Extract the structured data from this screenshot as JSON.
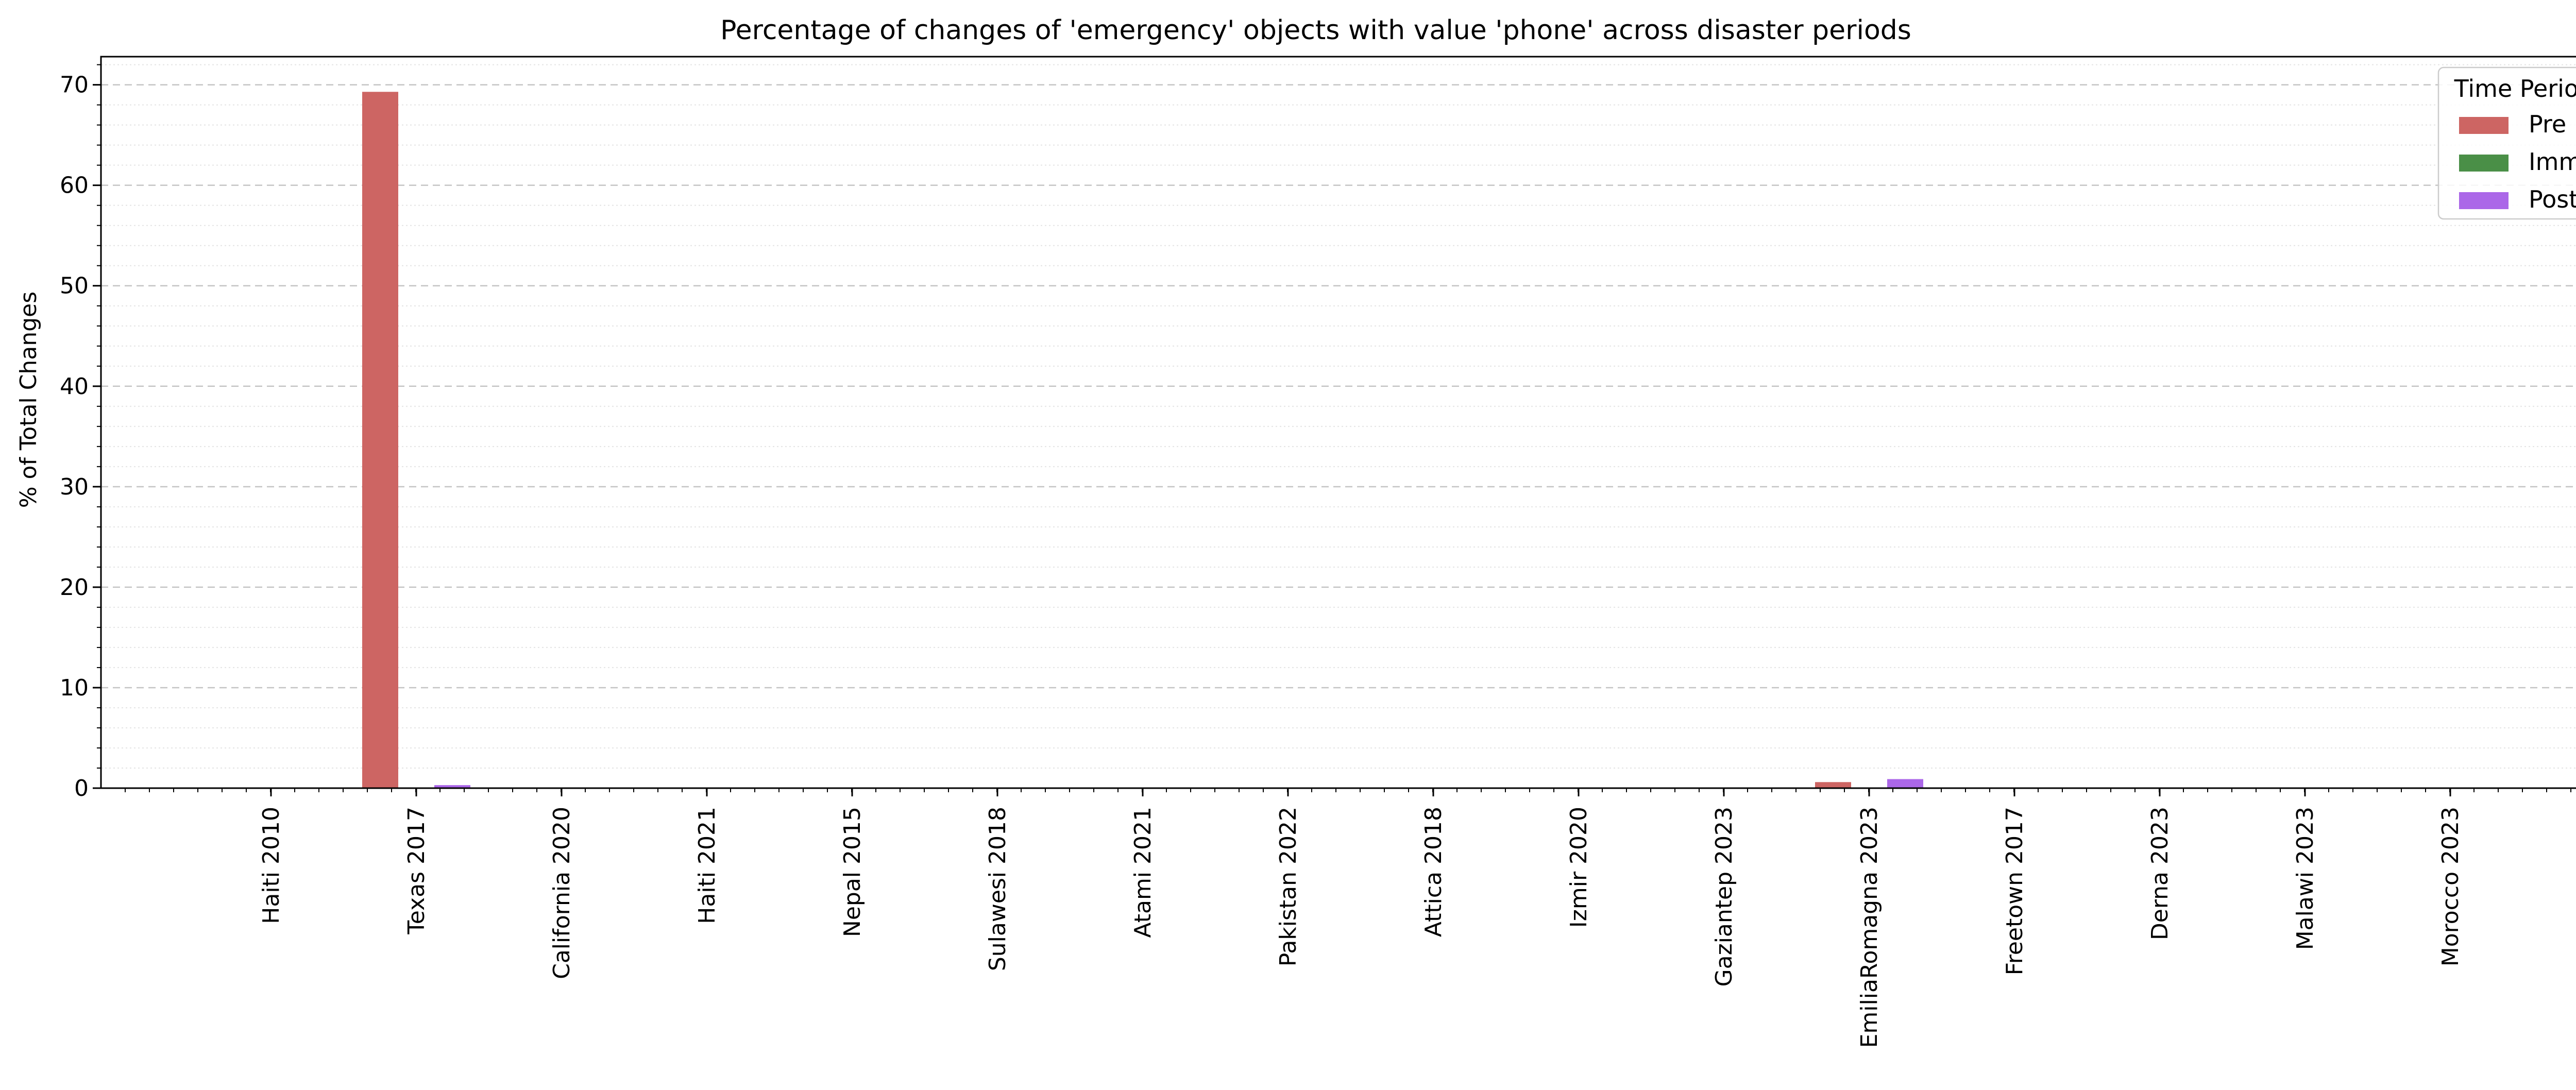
{
  "chart_data": {
    "type": "bar",
    "title": "Percentage of changes of 'emergency' objects with value 'phone' across disaster periods",
    "xlabel": "",
    "ylabel": "% of Total Changes",
    "ylim": [
      0,
      72.8
    ],
    "yticks": [
      0,
      10,
      20,
      30,
      40,
      50,
      60,
      70
    ],
    "grid": true,
    "categories": [
      "Haiti 2010",
      "Texas 2017",
      "California 2020",
      "Haiti 2021",
      "Nepal 2015",
      "Sulawesi 2018",
      "Atami 2021",
      "Pakistan 2022",
      "Attica 2018",
      "Izmir 2020",
      "Gaziantep 2023",
      "EmiliaRomagna 2023",
      "Freetown 2017",
      "Derna 2023",
      "Malawi 2023",
      "Morocco 2023"
    ],
    "series": [
      {
        "name": "Pre",
        "color": "#cd6563",
        "values": [
          0,
          69.3,
          0,
          0,
          0,
          0,
          0,
          0,
          0,
          0,
          0,
          0.6,
          0,
          0,
          0,
          0
        ]
      },
      {
        "name": "Imm",
        "color": "#4a8f47",
        "values": [
          0,
          0,
          0,
          0,
          0,
          0,
          0,
          0,
          0,
          0,
          0,
          0,
          0,
          0,
          0,
          0
        ]
      },
      {
        "name": "Post",
        "color": "#ab67e8",
        "values": [
          0,
          0.3,
          0,
          0,
          0,
          0,
          0,
          0,
          0,
          0,
          0,
          0.9,
          0,
          0,
          0,
          0
        ]
      }
    ],
    "legend": {
      "title": "Time Period",
      "position": "top-right"
    }
  }
}
